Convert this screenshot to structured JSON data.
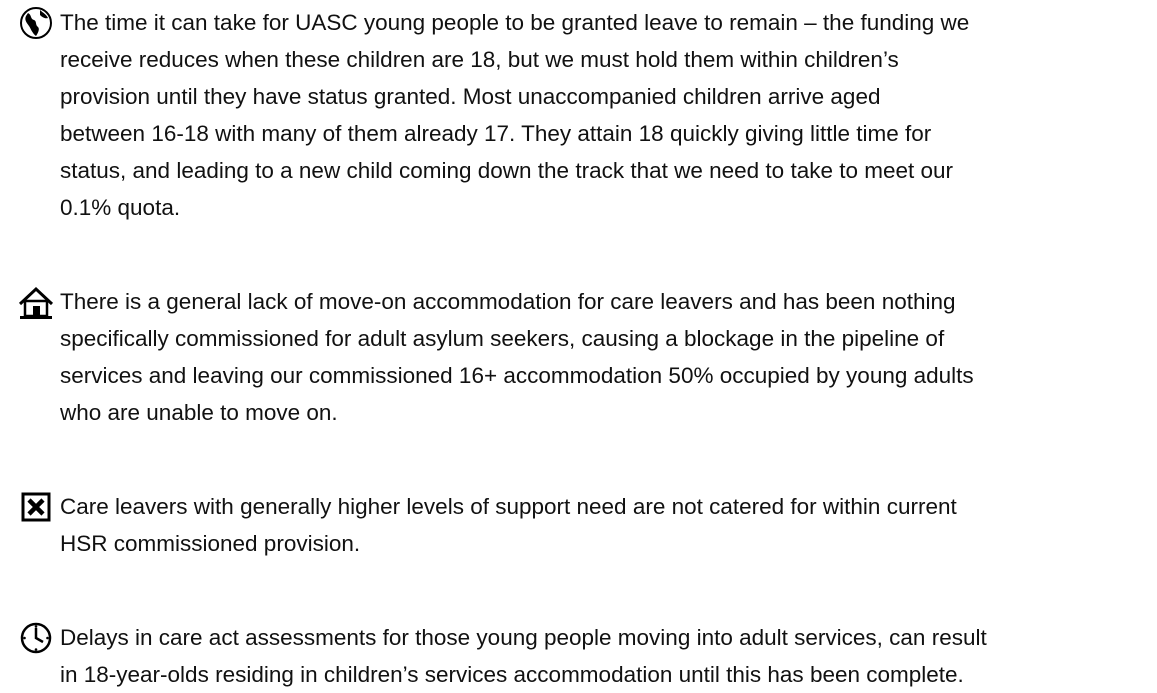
{
  "items": [
    {
      "lines": [
        "The time it can take for UASC young people to be granted leave to remain – the funding we",
        "receive reduces when these children are 18, but we must hold them within children’s",
        "provision until they have status granted.  Most unaccompanied children arrive aged",
        "between 16-18 with many of them already 17.  They attain 18 quickly giving little time for",
        "status, and leading to a new child coming down the track that we need to take to meet our",
        "0.1% quota."
      ]
    },
    {
      "lines": [
        "There is a general lack of move-on accommodation for care leavers and has been nothing",
        "specifically commissioned for adult asylum seekers, causing a blockage in the pipeline of",
        "services and leaving our commissioned 16+ accommodation 50% occupied by young adults",
        "who are unable to move on."
      ]
    },
    {
      "lines": [
        "Care leavers with generally higher levels of support need are not catered for within current",
        "HSR commissioned provision."
      ]
    },
    {
      "lines": [
        "Delays in care act assessments for those young people moving into adult services, can result",
        "in 18-year-olds residing in children’s services accommodation until this has been complete."
      ]
    }
  ]
}
